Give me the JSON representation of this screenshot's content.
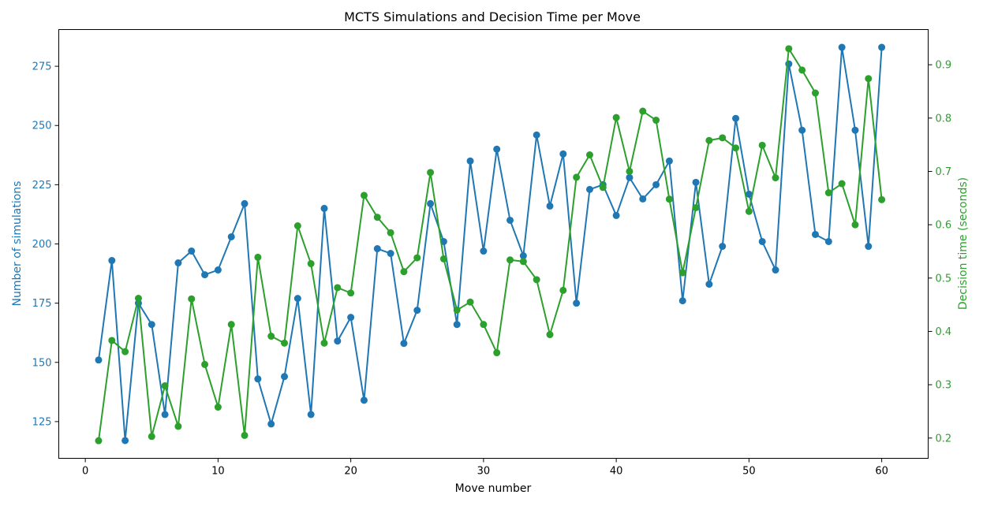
{
  "chart_data": {
    "type": "line",
    "title": "MCTS Simulations and Decision Time per Move",
    "xlabel": "Move number",
    "xlim": [
      -2,
      63.5
    ],
    "xticks": [
      0,
      10,
      20,
      30,
      40,
      50,
      60
    ],
    "grid": false,
    "legend": "none",
    "x": [
      1,
      2,
      3,
      4,
      5,
      6,
      7,
      8,
      9,
      10,
      11,
      12,
      13,
      14,
      15,
      16,
      17,
      18,
      19,
      20,
      21,
      22,
      23,
      24,
      25,
      26,
      27,
      28,
      29,
      30,
      31,
      32,
      33,
      34,
      35,
      36,
      37,
      38,
      39,
      40,
      41,
      42,
      43,
      44,
      45,
      46,
      47,
      48,
      49,
      50,
      51,
      52,
      53,
      54,
      55,
      56,
      57,
      58,
      59,
      60
    ],
    "axes": {
      "left": {
        "label": "Number of simulations",
        "ylim": [
          109.5,
          290.5
        ],
        "ticks": [
          125,
          150,
          175,
          200,
          225,
          250,
          275
        ],
        "color": "#1f77b4"
      },
      "right": {
        "label": "Decision time (seconds)",
        "ylim": [
          0.162,
          0.966
        ],
        "ticks": [
          0.2,
          0.3,
          0.4,
          0.5,
          0.6,
          0.7,
          0.8,
          0.9
        ],
        "tick_labels": [
          "0.2",
          "0.3",
          "0.4",
          "0.5",
          "0.6",
          "0.7",
          "0.8",
          "0.9"
        ],
        "color": "#2ca02c"
      }
    },
    "series": [
      {
        "axis": "left",
        "color": "#1f77b4",
        "values": [
          151,
          193,
          117,
          175,
          166,
          128,
          192,
          197,
          187,
          189,
          203,
          217,
          143,
          124,
          144,
          177,
          128,
          215,
          159,
          169,
          134,
          198,
          196,
          158,
          172,
          217,
          201,
          166,
          235,
          197,
          240,
          210,
          195,
          246,
          216,
          238,
          175,
          223,
          225,
          212,
          228,
          219,
          225,
          235,
          176,
          226,
          183,
          199,
          253,
          221,
          201,
          189,
          276,
          248,
          204,
          201,
          283,
          248,
          199,
          283
        ]
      },
      {
        "axis": "right",
        "color": "#2ca02c",
        "values": [
          0.195,
          0.383,
          0.362,
          0.462,
          0.203,
          0.298,
          0.222,
          0.461,
          0.338,
          0.258,
          0.413,
          0.205,
          0.539,
          0.391,
          0.378,
          0.598,
          0.527,
          0.378,
          0.482,
          0.472,
          0.655,
          0.614,
          0.585,
          0.512,
          0.538,
          0.698,
          0.536,
          0.44,
          0.455,
          0.413,
          0.36,
          0.534,
          0.531,
          0.497,
          0.394,
          0.477,
          0.689,
          0.731,
          0.67,
          0.801,
          0.7,
          0.813,
          0.796,
          0.648,
          0.51,
          0.632,
          0.758,
          0.763,
          0.744,
          0.625,
          0.749,
          0.688,
          0.93,
          0.89,
          0.847,
          0.66,
          0.677,
          0.6,
          0.874,
          0.647
        ]
      }
    ]
  }
}
